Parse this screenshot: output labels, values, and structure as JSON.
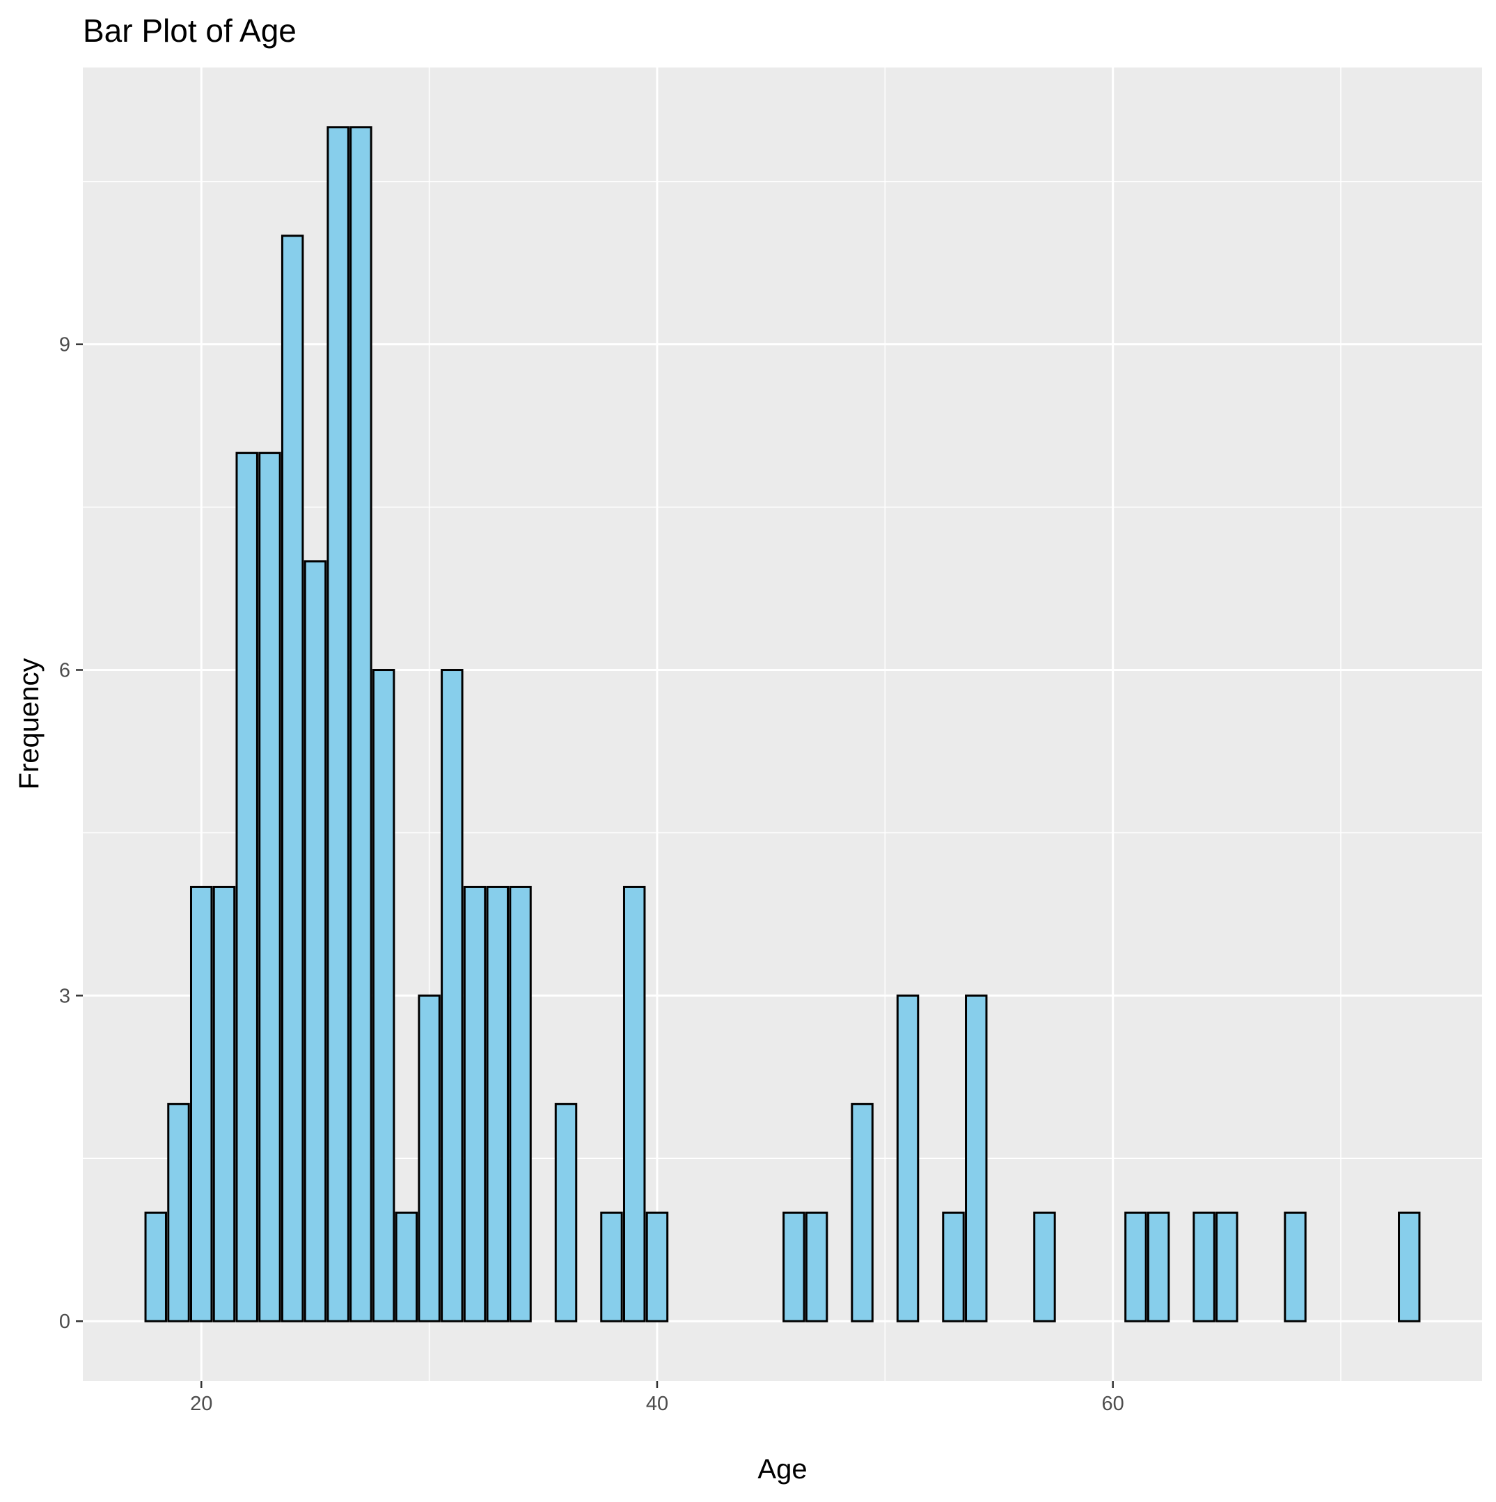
{
  "chart_data": {
    "type": "bar",
    "title": "Bar Plot of Age",
    "xlabel": "Age",
    "ylabel": "Frequency",
    "x": [
      18,
      19,
      20,
      21,
      22,
      23,
      24,
      25,
      26,
      27,
      28,
      29,
      30,
      31,
      32,
      33,
      34,
      36,
      38,
      39,
      40,
      46,
      47,
      49,
      51,
      53,
      54,
      57,
      61,
      62,
      64,
      65,
      68,
      73
    ],
    "values": [
      1,
      2,
      4,
      4,
      8,
      8,
      10,
      7,
      11,
      11,
      6,
      1,
      3,
      6,
      4,
      4,
      4,
      2,
      1,
      4,
      1,
      1,
      1,
      2,
      3,
      1,
      3,
      1,
      1,
      1,
      1,
      1,
      1,
      1
    ],
    "xlim": [
      14.8,
      76.2
    ],
    "ylim": [
      -0.55,
      11.55
    ],
    "x_ticks": [
      20,
      40,
      60
    ],
    "y_ticks": [
      0,
      3,
      6,
      9
    ],
    "x_tick_labels": [
      "20",
      "40",
      "60"
    ],
    "y_tick_labels": [
      "0",
      "3",
      "6",
      "9"
    ],
    "grid": true,
    "legend": "none",
    "colors": {
      "bar_fill": "#87CEEB",
      "bar_outline": "#000000",
      "panel_background": "#EBEBEB",
      "grid": "#FFFFFF"
    }
  }
}
